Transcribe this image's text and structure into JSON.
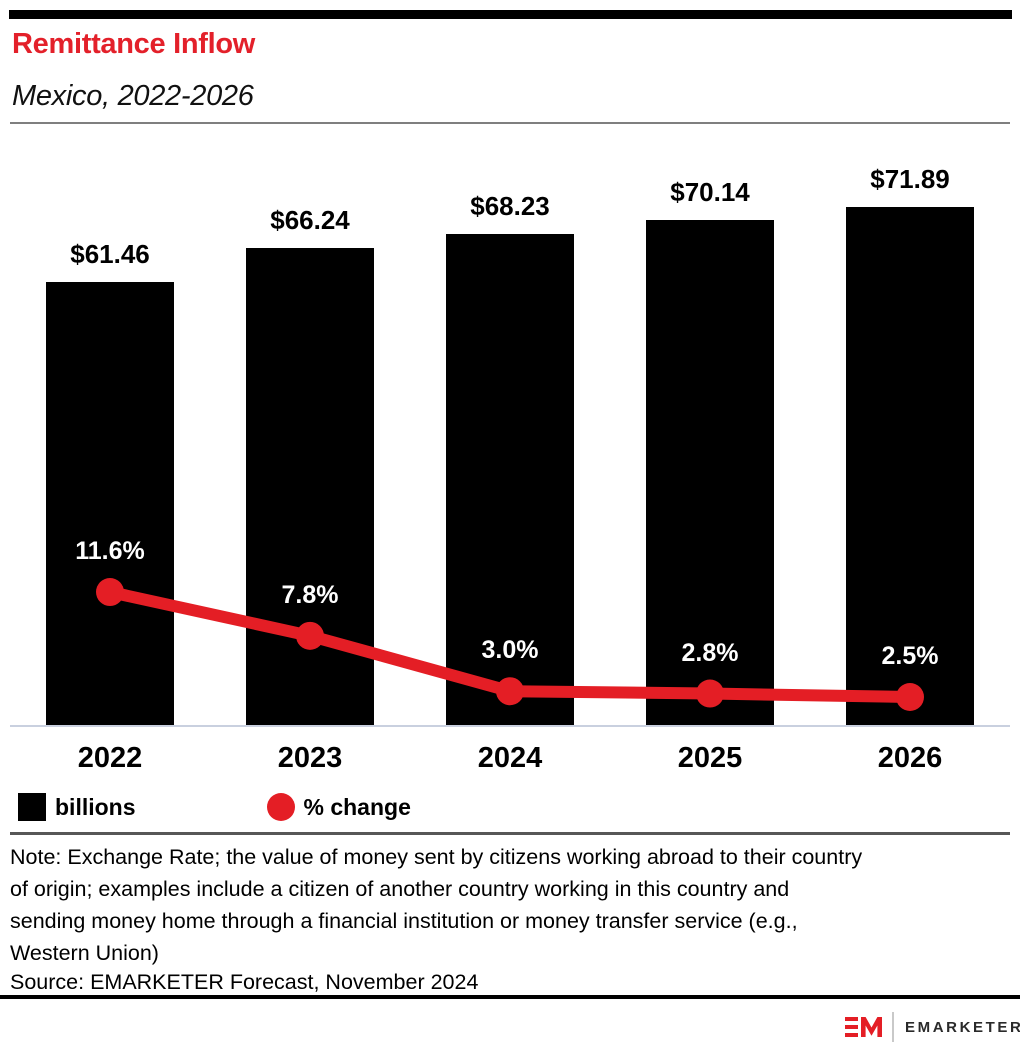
{
  "header": {
    "title": "Remittance Inflow",
    "subtitle": "Mexico, 2022-2026",
    "title_color": "#e3202a"
  },
  "chart_data": {
    "type": "bar",
    "combo_types": [
      "bar",
      "line"
    ],
    "title": "Remittance Inflow",
    "subtitle": "Mexico, 2022-2026",
    "categories": [
      "2022",
      "2023",
      "2024",
      "2025",
      "2026"
    ],
    "series": [
      {
        "name": "billions",
        "type": "bar",
        "values": [
          61.46,
          66.24,
          68.23,
          70.14,
          71.89
        ],
        "labels": [
          "$61.46",
          "$66.24",
          "$68.23",
          "$70.14",
          "$71.89"
        ],
        "color": "#000000"
      },
      {
        "name": "% change",
        "type": "line",
        "values": [
          11.6,
          7.8,
          3.0,
          2.8,
          2.5
        ],
        "labels": [
          "11.6%",
          "7.8%",
          "3.0%",
          "2.8%",
          "2.5%"
        ],
        "color": "#e41e25"
      }
    ],
    "xlabel": "",
    "ylabel": "",
    "grid": false,
    "legend_position": "bottom-left"
  },
  "legend": {
    "bars_label": "billions",
    "line_label": "% change",
    "bar_color": "#000000",
    "line_color": "#e41e25"
  },
  "footnote": {
    "note_lines": [
      "Note: Exchange Rate; the value of money sent by citizens working abroad to their country",
      "of origin; examples include a citizen of another country working in this country and",
      "sending money home through a financial institution or money transfer service (e.g.,",
      "Western Union)"
    ],
    "source": "Source: EMARKETER Forecast, November 2024"
  },
  "footer": {
    "brand": "EMARKETER",
    "logo": "em-monogram-icon",
    "logo_color": "#e41e25"
  }
}
